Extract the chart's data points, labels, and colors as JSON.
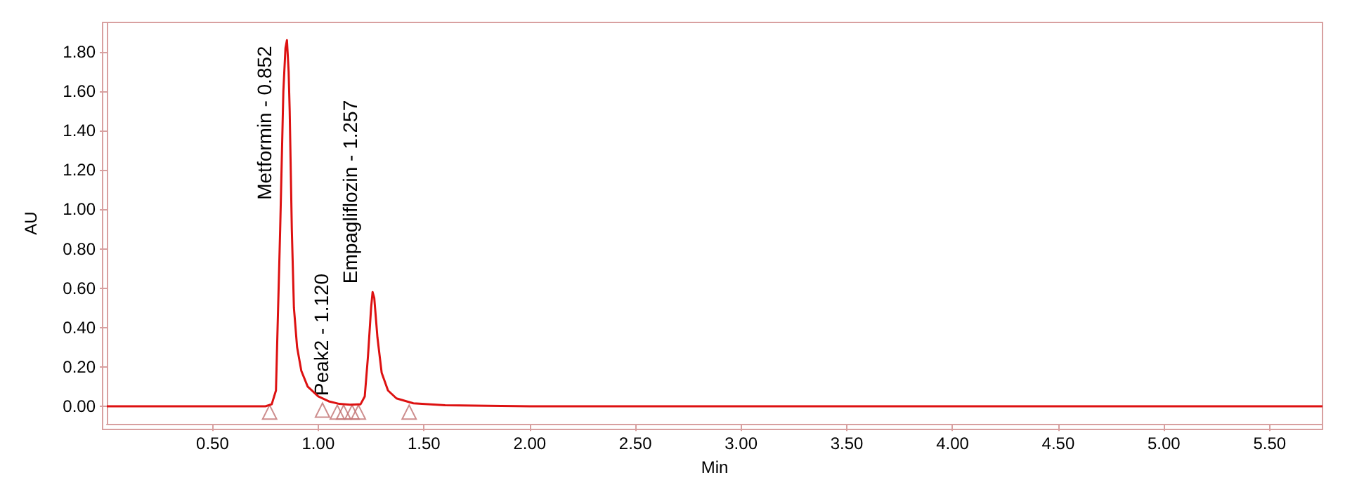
{
  "chart_data": {
    "type": "line",
    "xlabel": "Min",
    "ylabel": "AU",
    "xlim": [
      0,
      5.75
    ],
    "xticks": [
      {
        "value": 0.5,
        "label": "0.50"
      },
      {
        "value": 1,
        "label": "1.00"
      },
      {
        "value": 1.5,
        "label": "1.50"
      },
      {
        "value": 2,
        "label": "2.00"
      },
      {
        "value": 2.5,
        "label": "2.50"
      },
      {
        "value": 3,
        "label": "3.00"
      },
      {
        "value": 3.5,
        "label": "3.50"
      },
      {
        "value": 4,
        "label": "4.00"
      },
      {
        "value": 4.5,
        "label": "4.50"
      },
      {
        "value": 5,
        "label": "5.00"
      },
      {
        "value": 5.5,
        "label": "5.50"
      }
    ],
    "ylim": [
      -0.09,
      1.95
    ],
    "yticks": [
      {
        "value": 0,
        "label": "0.00"
      },
      {
        "value": 0.2,
        "label": "0.20"
      },
      {
        "value": 0.4,
        "label": "0.40"
      },
      {
        "value": 0.6,
        "label": "0.60"
      },
      {
        "value": 0.8,
        "label": "0.80"
      },
      {
        "value": 1,
        "label": "1.00"
      },
      {
        "value": 1.2,
        "label": "1.20"
      },
      {
        "value": 1.4,
        "label": "1.40"
      },
      {
        "value": 1.6,
        "label": "1.60"
      },
      {
        "value": 1.8,
        "label": "1.80"
      }
    ],
    "grid": false,
    "marker": "none",
    "line_style": "solid",
    "series": [
      {
        "color": "#dd1111",
        "x": [
          0,
          0.3,
          0.6,
          0.75,
          0.78,
          0.8,
          0.82,
          0.835,
          0.845,
          0.852,
          0.86,
          0.865,
          0.875,
          0.885,
          0.9,
          0.92,
          0.95,
          1.0,
          1.05,
          1.1,
          1.15,
          1.2,
          1.22,
          1.235,
          1.25,
          1.257,
          1.265,
          1.28,
          1.3,
          1.33,
          1.37,
          1.45,
          1.6,
          2.0,
          3.0,
          3.5,
          4.0,
          5.0,
          5.75
        ],
        "values": [
          0,
          0,
          0,
          0,
          0.01,
          0.08,
          0.9,
          1.6,
          1.82,
          1.86,
          1.7,
          1.5,
          0.9,
          0.5,
          0.3,
          0.18,
          0.1,
          0.05,
          0.025,
          0.012,
          0.008,
          0.01,
          0.05,
          0.25,
          0.5,
          0.58,
          0.55,
          0.35,
          0.17,
          0.08,
          0.04,
          0.015,
          0.005,
          0,
          0,
          0,
          0,
          0,
          0
        ]
      },
      {
        "type": "scatter",
        "marker": "triangle",
        "color": "#c07070",
        "x": [
          0.77,
          1.02,
          1.09,
          1.12,
          1.16,
          1.19,
          1.43
        ],
        "values": [
          -0.03,
          -0.02,
          -0.03,
          -0.03,
          -0.03,
          -0.03,
          -0.03
        ]
      }
    ],
    "annotations": [
      {
        "text": "Metformin - 0.852",
        "x": 0.852,
        "y": 1.86
      },
      {
        "text": "Peak2 - 1.120",
        "x": 1.12,
        "y": 0.01
      },
      {
        "text": "Empagliflozin - 1.257",
        "x": 1.257,
        "y": 0.58
      }
    ]
  }
}
